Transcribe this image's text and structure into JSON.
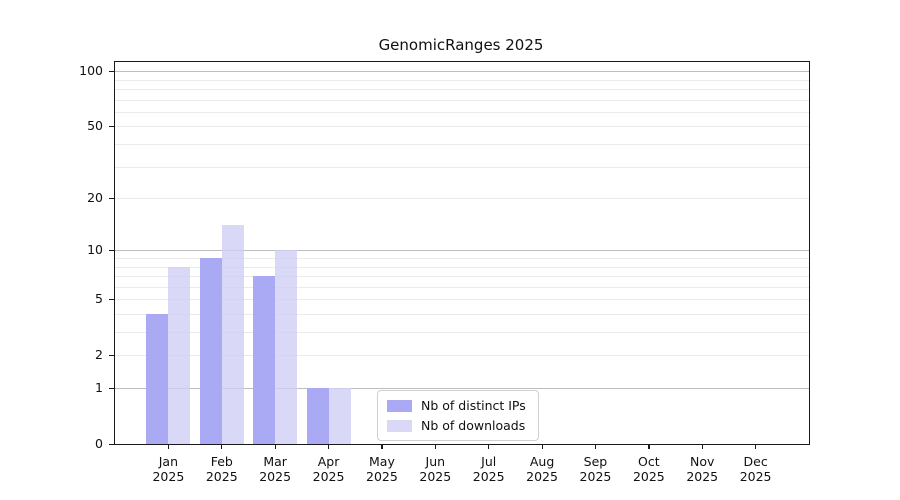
{
  "title": "GenomicRanges 2025",
  "chart_data": {
    "type": "bar",
    "title": "GenomicRanges 2025",
    "categories": [
      "Jan",
      "Feb",
      "Mar",
      "Apr",
      "May",
      "Jun",
      "Jul",
      "Aug",
      "Sep",
      "Oct",
      "Nov",
      "Dec"
    ],
    "year": "2025",
    "series": [
      {
        "name": "Nb of distinct IPs",
        "color": "#a9a9f4",
        "values": [
          4,
          9,
          7,
          1,
          0,
          0,
          0,
          0,
          0,
          0,
          0,
          0
        ]
      },
      {
        "name": "Nb of downloads",
        "color": "#cfcff5",
        "values": [
          8,
          14,
          10,
          1,
          0,
          0,
          0,
          0,
          0,
          0,
          0,
          0
        ]
      }
    ],
    "y_axis": {
      "scale": "log10(value+1)",
      "range": [
        0,
        100
      ],
      "ticks": [
        0,
        1,
        2,
        5,
        10,
        20,
        50,
        100
      ],
      "major_gridlines": [
        1,
        10,
        100
      ],
      "minor_gridlines": [
        2,
        3,
        4,
        5,
        6,
        7,
        8,
        9,
        20,
        30,
        40,
        50,
        60,
        70,
        80,
        90
      ]
    },
    "x_axis": {
      "tick_position": "category-center"
    },
    "legend": {
      "position": "inside-bottom-center",
      "items": [
        "Nb of distinct IPs",
        "Nb of downloads"
      ]
    },
    "grid": "on",
    "colors": {
      "axis": "#1a1a1a",
      "major_grid": "#bdbdbd",
      "minor_grid": "#ebebeb",
      "background": "#ffffff"
    }
  }
}
